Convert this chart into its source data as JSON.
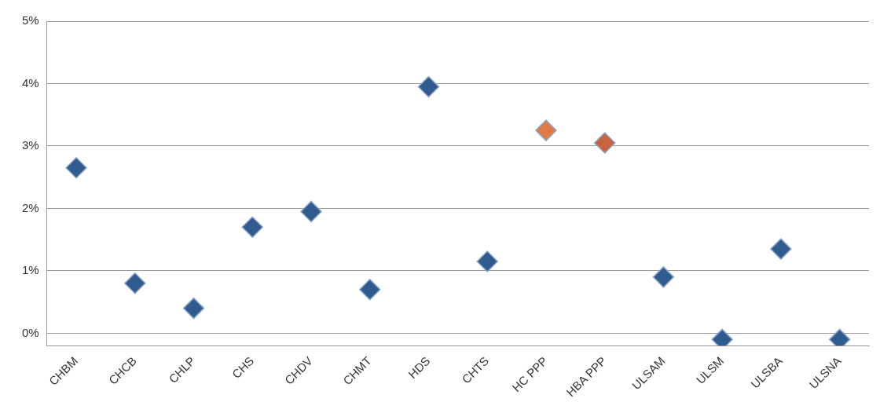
{
  "chart_data": {
    "type": "scatter",
    "categories": [
      "CHBM",
      "CHCB",
      "CHLP",
      "CHS",
      "CHDV",
      "CHMT",
      "HDS",
      "CHTS",
      "HC PPP",
      "HBA PPP",
      "ULSAM",
      "ULSM",
      "ULSBA",
      "ULSNA"
    ],
    "values": [
      2.65,
      0.8,
      0.4,
      1.7,
      1.95,
      0.7,
      3.95,
      1.15,
      3.25,
      3.05,
      0.9,
      -0.1,
      1.35,
      -0.1
    ],
    "colors": [
      "#2f5b8e",
      "#2f5b8e",
      "#2f5b8e",
      "#2f5b8e",
      "#2f5b8e",
      "#2f5b8e",
      "#2f5b8e",
      "#2f5b8e",
      "#e07b45",
      "#c9623f",
      "#2f5b8e",
      "#2f5b8e",
      "#2f5b8e",
      "#2f5b8e"
    ],
    "ylim": [
      -0.2,
      5
    ],
    "yticks": [
      {
        "value": 0,
        "label": "0%"
      },
      {
        "value": 1,
        "label": "1%"
      },
      {
        "value": 2,
        "label": "2%"
      },
      {
        "value": 3,
        "label": "3%"
      },
      {
        "value": 4,
        "label": "4%"
      },
      {
        "value": 5,
        "label": "5%"
      }
    ],
    "grid": "y",
    "marker": "diamond"
  }
}
